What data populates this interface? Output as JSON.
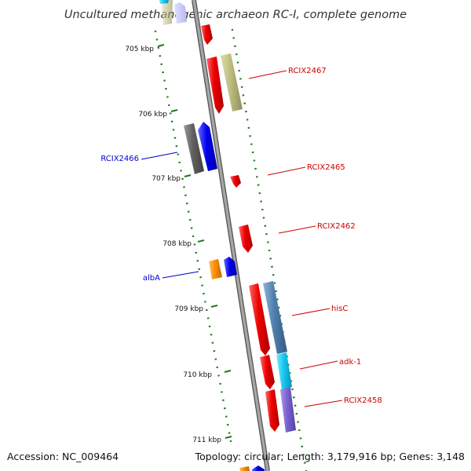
{
  "title": "Uncultured methanogenic archaeon RC-I, complete genome",
  "footer": {
    "accession": "Accession: NC_009464",
    "topology": "Topology: circular; Length: 3,179,916 bp; Genes: 3,148"
  },
  "ticks": [
    {
      "label": "705 kbp"
    },
    {
      "label": "706 kbp"
    },
    {
      "label": "707 kbp"
    },
    {
      "label": "708 kbp"
    },
    {
      "label": "709 kbp"
    },
    {
      "label": "710 kbp"
    },
    {
      "label": "711 kbp"
    }
  ],
  "gene_labels": [
    {
      "text": "RCIX2467",
      "color": "#cc0000"
    },
    {
      "text": "RCIX2466",
      "color": "#0000cc"
    },
    {
      "text": "RCIX2465",
      "color": "#cc0000"
    },
    {
      "text": "RCIX2462",
      "color": "#cc0000"
    },
    {
      "text": "albA",
      "color": "#0000cc"
    },
    {
      "text": "hisC",
      "color": "#cc0000"
    },
    {
      "text": "adk-1",
      "color": "#cc0000"
    },
    {
      "text": "RCIX2458",
      "color": "#cc0000"
    }
  ],
  "colors": {
    "forward_cds": "#ee0000",
    "reverse_cds": "#0000ee",
    "tick_marks": "#1f7a1f",
    "backbone": "#8c8c8c"
  }
}
